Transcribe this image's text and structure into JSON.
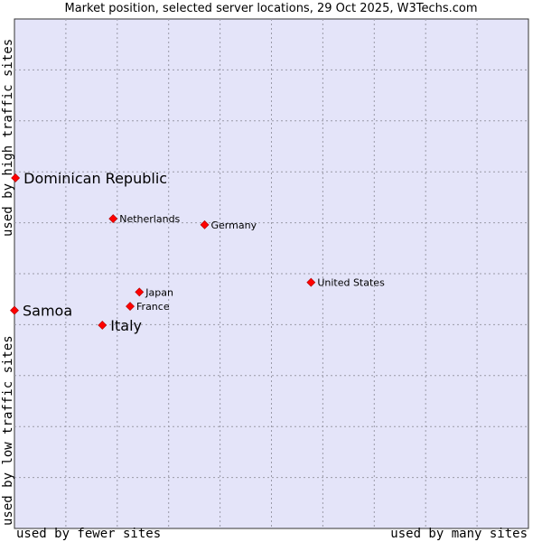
{
  "chart_data": {
    "type": "scatter",
    "title": "Market position, selected server locations, 29 Oct 2025, W3Techs.com",
    "xlabel_left": "used by fewer sites",
    "xlabel_right": "used by many sites",
    "ylabel_top": "used by high traffic sites",
    "ylabel_bottom": "used by low traffic sites",
    "xlim": [
      0,
      100
    ],
    "ylim": [
      0,
      100
    ],
    "grid": true,
    "points": [
      {
        "label": "Dominican Republic",
        "x": 0.2,
        "y": 68.8,
        "highlight": true
      },
      {
        "label": "Netherlands",
        "x": 19.2,
        "y": 60.8,
        "highlight": false
      },
      {
        "label": "Germany",
        "x": 37.0,
        "y": 59.6,
        "highlight": false
      },
      {
        "label": "United States",
        "x": 57.7,
        "y": 48.3,
        "highlight": false
      },
      {
        "label": "Japan",
        "x": 24.3,
        "y": 46.4,
        "highlight": false
      },
      {
        "label": "France",
        "x": 22.5,
        "y": 43.6,
        "highlight": false
      },
      {
        "label": "Samoa",
        "x": 0.0,
        "y": 42.8,
        "highlight": true
      },
      {
        "label": "Italy",
        "x": 17.1,
        "y": 39.9,
        "highlight": true
      }
    ]
  }
}
